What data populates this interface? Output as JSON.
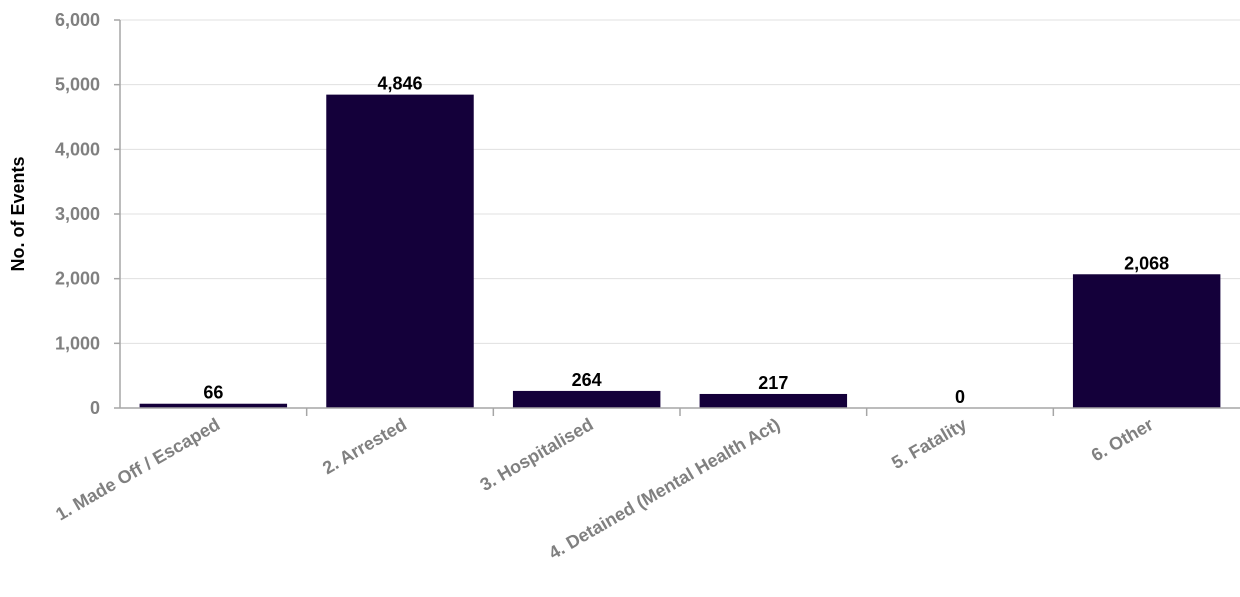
{
  "chart_data": {
    "type": "bar",
    "categories": [
      "1. Made Off / Escaped",
      "2. Arrested",
      "3. Hospitalised",
      "4. Detained (Mental Health Act)",
      "5. Fatality",
      "6. Other"
    ],
    "values": [
      66,
      4846,
      264,
      217,
      0,
      2068
    ],
    "data_labels": [
      "66",
      "4,846",
      "264",
      "217",
      "0",
      "2,068"
    ],
    "ylabel": "No. of Events",
    "ylim": [
      0,
      6000
    ],
    "yticks": [
      0,
      1000,
      2000,
      3000,
      4000,
      5000,
      6000
    ],
    "ytick_labels": [
      "0",
      "1,000",
      "2,000",
      "3,000",
      "4,000",
      "5,000",
      "6,000"
    ],
    "grid": true,
    "legend": "none",
    "colors": {
      "bar": "#14003a",
      "grid": "#e0e0e0",
      "axis": "#a6a6a6",
      "tick_text": "#808080"
    }
  }
}
